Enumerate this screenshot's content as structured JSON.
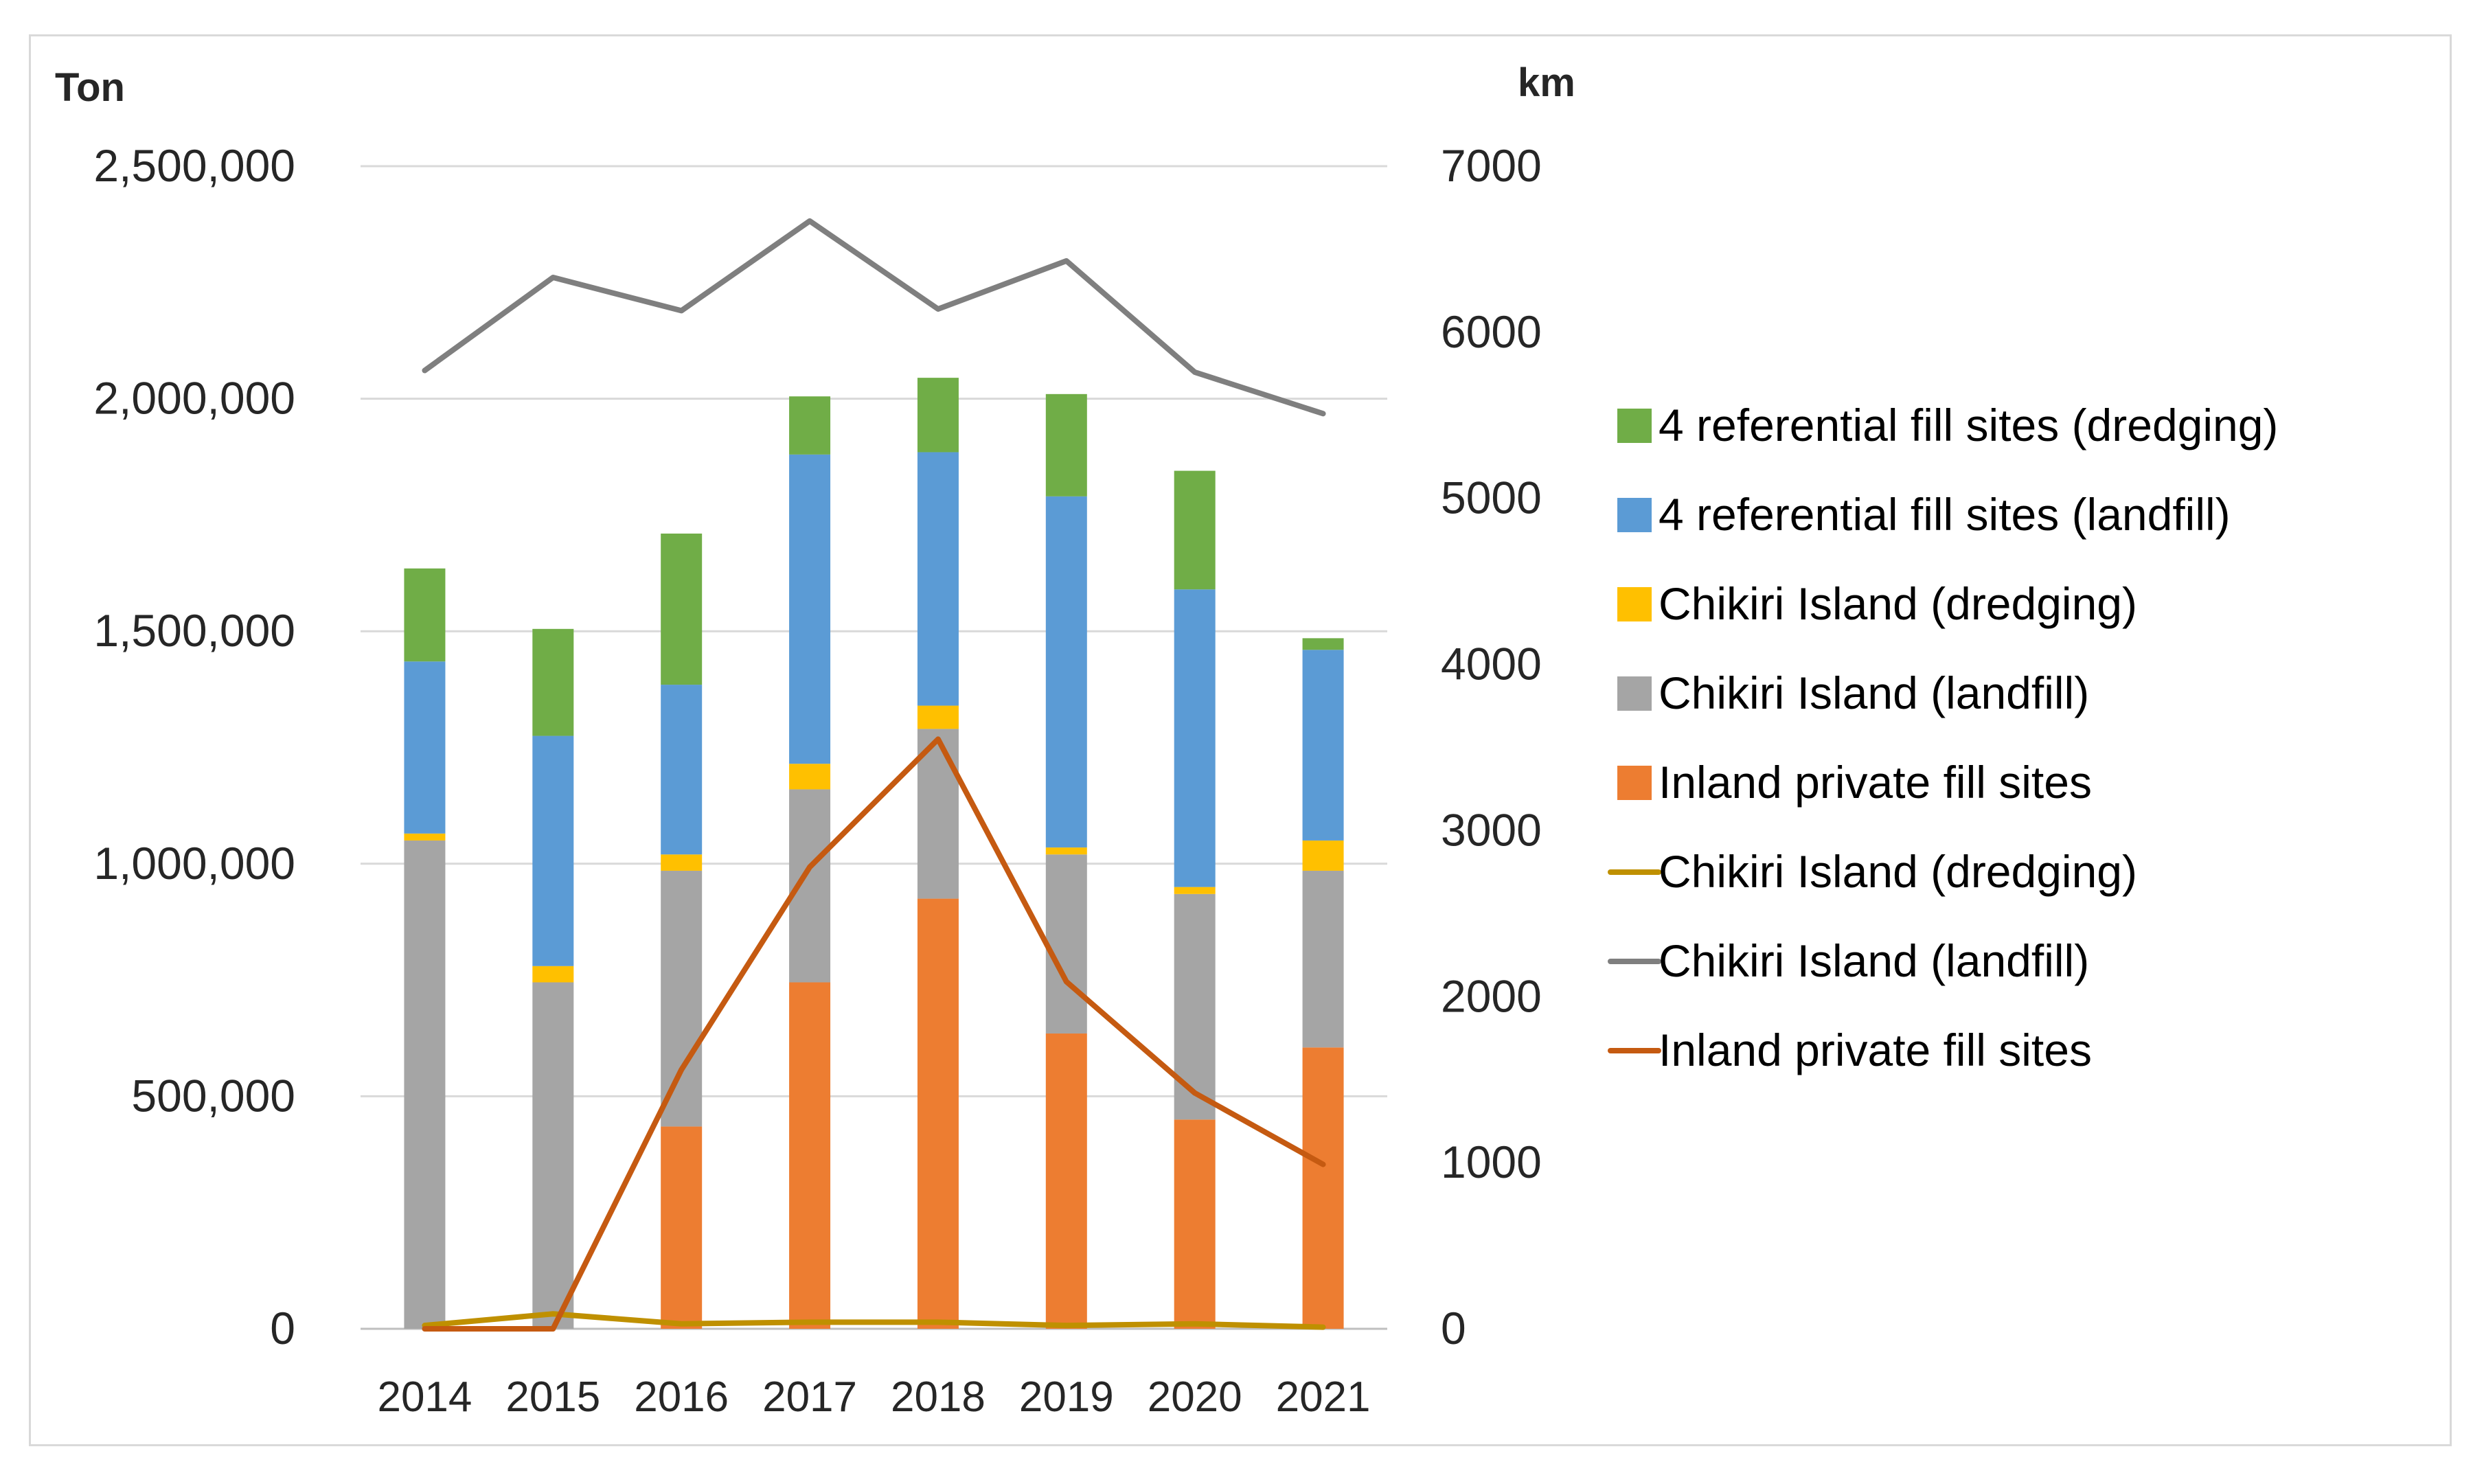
{
  "chart_data": {
    "type": "bar+line",
    "categories": [
      "2014",
      "2015",
      "2016",
      "2017",
      "2018",
      "2019",
      "2020",
      "2021"
    ],
    "left_axis": {
      "unit_label": "Ton",
      "ylim": [
        0,
        2500000
      ],
      "ticks": [
        0,
        500000,
        1000000,
        1500000,
        2000000,
        2500000
      ],
      "tick_labels": [
        "0",
        "500,000",
        "1,000,000",
        "1,500,000",
        "2,000,000",
        "2,500,000"
      ]
    },
    "right_axis": {
      "unit_label": "km",
      "ylim": [
        0,
        7000
      ],
      "ticks": [
        0,
        1000,
        2000,
        3000,
        4000,
        5000,
        6000,
        7000
      ],
      "tick_labels": [
        "0",
        "1000",
        "2000",
        "3000",
        "4000",
        "5000",
        "6000",
        "7000"
      ]
    },
    "bar_series": [
      {
        "name": "Inland private fill sites",
        "color": "#ED7D31",
        "values": [
          0,
          0,
          435000,
          745000,
          925000,
          635000,
          450000,
          605000
        ]
      },
      {
        "name": "Chikiri Island (landfill)",
        "color": "#A5A5A5",
        "values": [
          1050000,
          745000,
          550000,
          415000,
          365000,
          385000,
          485000,
          380000
        ]
      },
      {
        "name": "Chikiri Island (dredging)",
        "color": "#FFC000",
        "values": [
          15000,
          35000,
          35000,
          55000,
          50000,
          15000,
          15000,
          65000
        ]
      },
      {
        "name": "4 referential fill sites (landfill)",
        "color": "#5B9BD5",
        "values": [
          370000,
          495000,
          365000,
          665000,
          545000,
          755000,
          640000,
          410000
        ]
      },
      {
        "name": "4 referential fill sites (dredging)",
        "color": "#70AD47",
        "values": [
          200000,
          230000,
          325000,
          125000,
          160000,
          220000,
          255000,
          25000
        ]
      }
    ],
    "line_series": [
      {
        "name": "Chikiri Island (dredging)",
        "color": "#BF9000",
        "axis": "right",
        "values": [
          20,
          90,
          30,
          40,
          40,
          20,
          30,
          10
        ]
      },
      {
        "name": "Chikiri Island (landfill)",
        "color": "#7F7F7F",
        "axis": "right",
        "values": [
          5770,
          6330,
          6130,
          6670,
          6140,
          6430,
          5760,
          5510
        ]
      },
      {
        "name": "Inland private fill sites",
        "color": "#C55A11",
        "axis": "right",
        "values": [
          0,
          0,
          1560,
          2780,
          3550,
          2090,
          1420,
          990
        ]
      }
    ],
    "legend_order": [
      {
        "label": "4 referential fill sites (dredging)",
        "kind": "bar",
        "color": "#70AD47"
      },
      {
        "label": "4 referential fill sites (landfill)",
        "kind": "bar",
        "color": "#5B9BD5"
      },
      {
        "label": "Chikiri Island (dredging)",
        "kind": "bar",
        "color": "#FFC000"
      },
      {
        "label": "Chikiri Island (landfill)",
        "kind": "bar",
        "color": "#A5A5A5"
      },
      {
        "label": "Inland private fill sites",
        "kind": "bar",
        "color": "#ED7D31"
      },
      {
        "label": "Chikiri Island (dredging)",
        "kind": "line",
        "color": "#BF9000"
      },
      {
        "label": "Chikiri Island (landfill)",
        "kind": "line",
        "color": "#7F7F7F"
      },
      {
        "label": "Inland private fill sites",
        "kind": "line",
        "color": "#C55A11"
      }
    ],
    "grid": true,
    "legend_position": "right"
  }
}
